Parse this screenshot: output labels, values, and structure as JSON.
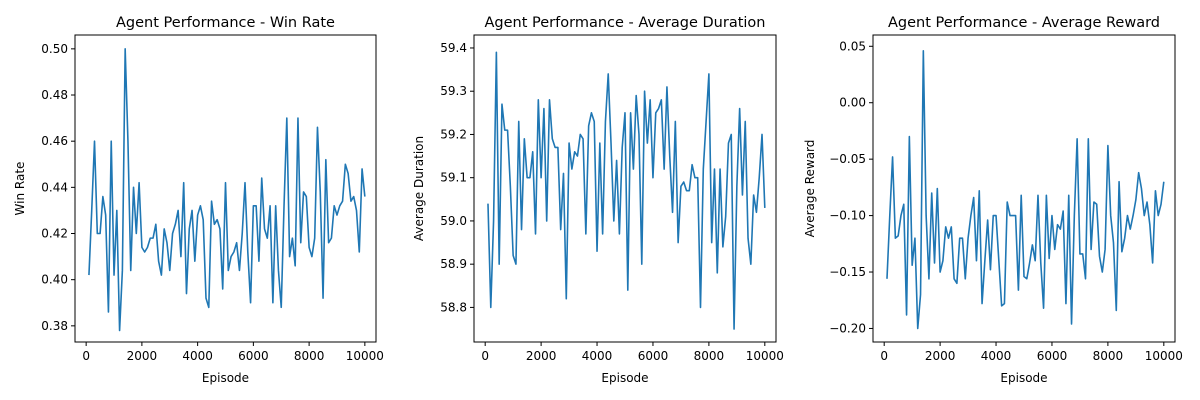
{
  "chart_data": [
    {
      "type": "line",
      "title": "Agent Performance - Win Rate",
      "xlabel": "Episode",
      "ylabel": "Win Rate",
      "xlim": [
        -400,
        10400
      ],
      "ylim": [
        0.373,
        0.506
      ],
      "xticks": [
        0,
        2000,
        4000,
        6000,
        8000,
        10000
      ],
      "xtick_labels": [
        "0",
        "2000",
        "4000",
        "6000",
        "8000",
        "10000"
      ],
      "yticks": [
        0.38,
        0.4,
        0.42,
        0.44,
        0.46,
        0.48,
        0.5
      ],
      "ytick_labels": [
        "0.38",
        "0.40",
        "0.42",
        "0.44",
        "0.46",
        "0.48",
        "0.50"
      ],
      "grid": false,
      "series": [
        {
          "x": [
            100,
            200,
            300,
            400,
            500,
            600,
            700,
            800,
            900,
            1000,
            1100,
            1200,
            1300,
            1400,
            1500,
            1600,
            1700,
            1800,
            1900,
            2000,
            2100,
            2200,
            2300,
            2400,
            2500,
            2600,
            2700,
            2800,
            2900,
            3000,
            3100,
            3200,
            3300,
            3400,
            3500,
            3600,
            3700,
            3800,
            3900,
            4000,
            4100,
            4200,
            4300,
            4400,
            4500,
            4600,
            4700,
            4800,
            4900,
            5000,
            5100,
            5200,
            5300,
            5400,
            5500,
            5600,
            5700,
            5800,
            5900,
            6000,
            6100,
            6200,
            6300,
            6400,
            6500,
            6600,
            6700,
            6800,
            6900,
            7000,
            7100,
            7200,
            7300,
            7400,
            7500,
            7600,
            7700,
            7800,
            7900,
            8000,
            8100,
            8200,
            8300,
            8400,
            8500,
            8600,
            8700,
            8800,
            8900,
            9000,
            9100,
            9200,
            9300,
            9400,
            9500,
            9600,
            9700,
            9800,
            9900,
            10000
          ],
          "y": [
            0.402,
            0.43,
            0.46,
            0.42,
            0.42,
            0.436,
            0.428,
            0.386,
            0.46,
            0.402,
            0.43,
            0.378,
            0.404,
            0.5,
            0.46,
            0.404,
            0.44,
            0.42,
            0.442,
            0.414,
            0.412,
            0.414,
            0.418,
            0.418,
            0.424,
            0.408,
            0.402,
            0.422,
            0.416,
            0.404,
            0.42,
            0.424,
            0.43,
            0.41,
            0.442,
            0.394,
            0.422,
            0.43,
            0.408,
            0.428,
            0.432,
            0.426,
            0.392,
            0.388,
            0.434,
            0.424,
            0.426,
            0.422,
            0.396,
            0.442,
            0.404,
            0.41,
            0.412,
            0.416,
            0.404,
            0.42,
            0.442,
            0.412,
            0.39,
            0.432,
            0.432,
            0.408,
            0.444,
            0.422,
            0.418,
            0.432,
            0.39,
            0.432,
            0.404,
            0.388,
            0.432,
            0.47,
            0.41,
            0.418,
            0.406,
            0.47,
            0.416,
            0.438,
            0.436,
            0.414,
            0.41,
            0.418,
            0.466,
            0.438,
            0.392,
            0.452,
            0.416,
            0.418,
            0.432,
            0.428,
            0.432,
            0.434,
            0.45,
            0.446,
            0.434,
            0.436,
            0.43,
            0.412,
            0.448,
            0.436
          ]
        }
      ]
    },
    {
      "type": "line",
      "title": "Agent Performance - Average Duration",
      "xlabel": "Episode",
      "ylabel": "Average Duration",
      "xlim": [
        -400,
        10400
      ],
      "ylim": [
        58.72,
        59.43
      ],
      "xticks": [
        0,
        2000,
        4000,
        6000,
        8000,
        10000
      ],
      "xtick_labels": [
        "0",
        "2000",
        "4000",
        "6000",
        "8000",
        "10000"
      ],
      "yticks": [
        58.8,
        58.9,
        59.0,
        59.1,
        59.2,
        59.3,
        59.4
      ],
      "ytick_labels": [
        "58.8",
        "58.9",
        "59.0",
        "59.1",
        "59.2",
        "59.3",
        "59.4"
      ],
      "grid": false,
      "series": [
        {
          "x": [
            100,
            200,
            300,
            400,
            500,
            600,
            700,
            800,
            900,
            1000,
            1100,
            1200,
            1300,
            1400,
            1500,
            1600,
            1700,
            1800,
            1900,
            2000,
            2100,
            2200,
            2300,
            2400,
            2500,
            2600,
            2700,
            2800,
            2900,
            3000,
            3100,
            3200,
            3300,
            3400,
            3500,
            3600,
            3700,
            3800,
            3900,
            4000,
            4100,
            4200,
            4300,
            4400,
            4500,
            4600,
            4700,
            4800,
            4900,
            5000,
            5100,
            5200,
            5300,
            5400,
            5500,
            5600,
            5700,
            5800,
            5900,
            6000,
            6100,
            6200,
            6300,
            6400,
            6500,
            6600,
            6700,
            6800,
            6900,
            7000,
            7100,
            7200,
            7300,
            7400,
            7500,
            7600,
            7700,
            7800,
            7900,
            8000,
            8100,
            8200,
            8300,
            8400,
            8500,
            8600,
            8700,
            8800,
            8900,
            9000,
            9100,
            9200,
            9300,
            9400,
            9500,
            9600,
            9700,
            9800,
            9900,
            10000
          ],
          "y": [
            59.04,
            58.8,
            59.0,
            59.39,
            58.9,
            59.27,
            59.21,
            59.21,
            59.08,
            58.92,
            58.9,
            59.23,
            58.98,
            59.19,
            59.1,
            59.1,
            59.16,
            58.97,
            59.28,
            59.1,
            59.26,
            59.0,
            59.28,
            59.19,
            59.17,
            59.17,
            58.98,
            59.11,
            58.82,
            59.18,
            59.12,
            59.16,
            59.15,
            59.2,
            59.19,
            58.97,
            59.22,
            59.25,
            59.23,
            58.93,
            59.18,
            58.97,
            59.23,
            59.34,
            59.18,
            59.0,
            59.14,
            58.97,
            59.17,
            59.25,
            58.84,
            59.25,
            59.12,
            59.29,
            59.2,
            58.9,
            59.3,
            59.18,
            59.28,
            59.1,
            59.25,
            59.26,
            59.28,
            59.12,
            59.31,
            59.15,
            59.02,
            59.23,
            58.95,
            59.08,
            59.09,
            59.07,
            59.07,
            59.13,
            59.1,
            59.1,
            58.8,
            59.12,
            59.23,
            59.34,
            58.95,
            59.12,
            58.88,
            59.12,
            58.94,
            59.01,
            59.18,
            59.2,
            58.75,
            59.08,
            59.26,
            59.06,
            59.23,
            58.96,
            58.9,
            59.06,
            59.02,
            59.1,
            59.2,
            59.03
          ]
        }
      ]
    },
    {
      "type": "line",
      "title": "Agent Performance - Average Reward",
      "xlabel": "Episode",
      "ylabel": "Average Reward",
      "xlim": [
        -400,
        10400
      ],
      "ylim": [
        -0.212,
        0.06
      ],
      "xticks": [
        0,
        2000,
        4000,
        6000,
        8000,
        10000
      ],
      "xtick_labels": [
        "0",
        "2000",
        "4000",
        "6000",
        "8000",
        "10000"
      ],
      "yticks": [
        -0.2,
        -0.15,
        -0.1,
        -0.05,
        0.0,
        0.05
      ],
      "ytick_labels": [
        "−0.20",
        "−0.15",
        "−0.10",
        "−0.05",
        "0.00",
        "0.05"
      ],
      "grid": false,
      "series": [
        {
          "x": [
            100,
            200,
            300,
            400,
            500,
            600,
            700,
            800,
            900,
            1000,
            1100,
            1200,
            1300,
            1400,
            1500,
            1600,
            1700,
            1800,
            1900,
            2000,
            2100,
            2200,
            2300,
            2400,
            2500,
            2600,
            2700,
            2800,
            2900,
            3000,
            3100,
            3200,
            3300,
            3400,
            3500,
            3600,
            3700,
            3800,
            3900,
            4000,
            4100,
            4200,
            4300,
            4400,
            4500,
            4600,
            4700,
            4800,
            4900,
            5000,
            5100,
            5200,
            5300,
            5400,
            5500,
            5600,
            5700,
            5800,
            5900,
            6000,
            6100,
            6200,
            6300,
            6400,
            6500,
            6600,
            6700,
            6800,
            6900,
            7000,
            7100,
            7200,
            7300,
            7400,
            7500,
            7600,
            7700,
            7800,
            7900,
            8000,
            8100,
            8200,
            8300,
            8400,
            8500,
            8600,
            8700,
            8800,
            8900,
            9000,
            9100,
            9200,
            9300,
            9400,
            9500,
            9600,
            9700,
            9800,
            9900,
            10000
          ],
          "y": [
            -0.156,
            -0.1,
            -0.048,
            -0.12,
            -0.118,
            -0.1,
            -0.09,
            -0.188,
            -0.03,
            -0.144,
            -0.12,
            -0.2,
            -0.17,
            0.046,
            -0.1,
            -0.156,
            -0.08,
            -0.142,
            -0.076,
            -0.15,
            -0.14,
            -0.11,
            -0.12,
            -0.11,
            -0.156,
            -0.16,
            -0.12,
            -0.12,
            -0.156,
            -0.12,
            -0.1,
            -0.084,
            -0.14,
            -0.078,
            -0.178,
            -0.14,
            -0.104,
            -0.148,
            -0.1,
            -0.1,
            -0.14,
            -0.18,
            -0.178,
            -0.088,
            -0.1,
            -0.1,
            -0.1,
            -0.166,
            -0.082,
            -0.154,
            -0.156,
            -0.142,
            -0.126,
            -0.14,
            -0.082,
            -0.142,
            -0.182,
            -0.082,
            -0.138,
            -0.1,
            -0.13,
            -0.108,
            -0.112,
            -0.096,
            -0.178,
            -0.082,
            -0.196,
            -0.1,
            -0.032,
            -0.134,
            -0.134,
            -0.156,
            -0.032,
            -0.13,
            -0.088,
            -0.09,
            -0.136,
            -0.15,
            -0.13,
            -0.038,
            -0.1,
            -0.124,
            -0.184,
            -0.07,
            -0.132,
            -0.12,
            -0.1,
            -0.112,
            -0.1,
            -0.086,
            -0.062,
            -0.076,
            -0.1,
            -0.088,
            -0.108,
            -0.142,
            -0.078,
            -0.1,
            -0.09,
            -0.07
          ]
        }
      ]
    }
  ]
}
